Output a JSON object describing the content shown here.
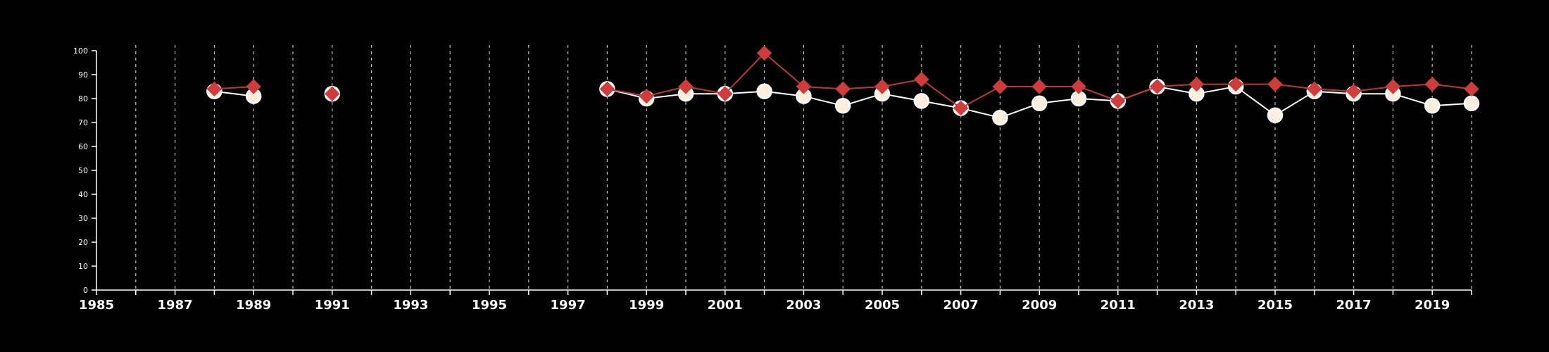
{
  "chart_data": {
    "type": "line",
    "title": "",
    "xlabel": "",
    "ylabel": "",
    "xlim": [
      1985,
      2020
    ],
    "ylim": [
      0,
      100
    ],
    "x_ticks": [
      "1985",
      "1987",
      "1989",
      "1991",
      "1993",
      "1995",
      "1997",
      "1999",
      "2001",
      "2003",
      "2005",
      "2007",
      "2009",
      "2011",
      "2013",
      "2015",
      "2017",
      "2019"
    ],
    "y_ticks": [
      "0",
      "10",
      "20",
      "30",
      "40",
      "50",
      "60",
      "70",
      "80",
      "90",
      "100"
    ],
    "grid": "vertical dashed lines at each year",
    "series": [
      {
        "marker": "circle",
        "color": "#fbeedd",
        "line_color": "#ffffff",
        "points": [
          [
            1988,
            83
          ],
          [
            1989,
            81
          ],
          [
            1991,
            82
          ],
          [
            1998,
            84
          ],
          [
            1999,
            80
          ],
          [
            2000,
            82
          ],
          [
            2001,
            82
          ],
          [
            2002,
            83
          ],
          [
            2003,
            81
          ],
          [
            2004,
            77
          ],
          [
            2005,
            82
          ],
          [
            2006,
            79
          ],
          [
            2007,
            76
          ],
          [
            2008,
            72
          ],
          [
            2009,
            78
          ],
          [
            2010,
            80
          ],
          [
            2011,
            79
          ],
          [
            2012,
            85
          ],
          [
            2013,
            82
          ],
          [
            2014,
            85
          ],
          [
            2015,
            73
          ],
          [
            2016,
            83
          ],
          [
            2017,
            82
          ],
          [
            2018,
            82
          ],
          [
            2019,
            77
          ],
          [
            2020,
            78
          ]
        ]
      },
      {
        "marker": "diamond",
        "color": "#d03c3c",
        "line_color": "#c0353a",
        "points": [
          [
            1988,
            84
          ],
          [
            1989,
            85
          ],
          [
            1991,
            82
          ],
          [
            1998,
            84
          ],
          [
            1999,
            81
          ],
          [
            2000,
            85
          ],
          [
            2001,
            82
          ],
          [
            2002,
            99
          ],
          [
            2003,
            85
          ],
          [
            2004,
            84
          ],
          [
            2005,
            85
          ],
          [
            2006,
            88
          ],
          [
            2007,
            76
          ],
          [
            2008,
            85
          ],
          [
            2009,
            85
          ],
          [
            2010,
            85
          ],
          [
            2011,
            79
          ],
          [
            2012,
            85
          ],
          [
            2013,
            86
          ],
          [
            2014,
            86
          ],
          [
            2015,
            86
          ],
          [
            2016,
            84
          ],
          [
            2017,
            83
          ],
          [
            2018,
            85
          ],
          [
            2019,
            86
          ],
          [
            2020,
            84
          ]
        ]
      }
    ]
  }
}
